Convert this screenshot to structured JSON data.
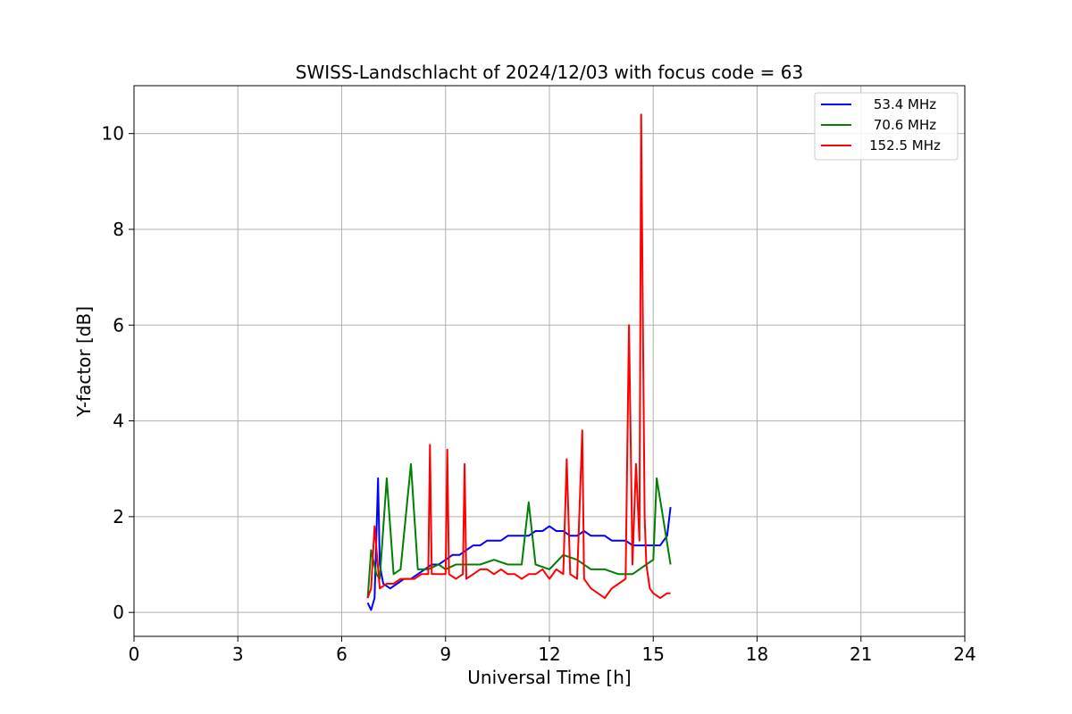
{
  "chart_data": {
    "type": "line",
    "title": "SWISS-Landschlacht of 2024/12/03 with focus code = 63",
    "xlabel": "Universal Time [h]",
    "ylabel": "Y-factor [dB]",
    "xlim": [
      0,
      24
    ],
    "ylim": [
      -0.5,
      11
    ],
    "xticks": [
      0,
      3,
      6,
      9,
      12,
      15,
      18,
      21,
      24
    ],
    "yticks": [
      0,
      2,
      4,
      6,
      8,
      10
    ],
    "grid": true,
    "legend_position": "top-right",
    "series": [
      {
        "name": "53.4 MHz",
        "color": "#0000ff",
        "x": [
          6.75,
          6.85,
          6.95,
          7.05,
          7.1,
          7.2,
          7.4,
          7.6,
          7.8,
          8.0,
          8.2,
          8.4,
          8.6,
          8.8,
          9.0,
          9.2,
          9.4,
          9.6,
          9.8,
          10.0,
          10.2,
          10.4,
          10.6,
          10.8,
          11.0,
          11.2,
          11.4,
          11.6,
          11.8,
          12.0,
          12.2,
          12.4,
          12.6,
          12.8,
          13.0,
          13.2,
          13.4,
          13.6,
          13.8,
          14.0,
          14.2,
          14.4,
          14.6,
          14.8,
          15.0,
          15.2,
          15.4,
          15.5
        ],
        "y": [
          0.2,
          0.05,
          0.3,
          2.8,
          1.0,
          0.6,
          0.5,
          0.6,
          0.7,
          0.7,
          0.8,
          0.9,
          1.0,
          1.0,
          1.1,
          1.2,
          1.2,
          1.3,
          1.4,
          1.4,
          1.5,
          1.5,
          1.5,
          1.6,
          1.6,
          1.6,
          1.6,
          1.7,
          1.7,
          1.8,
          1.7,
          1.7,
          1.6,
          1.6,
          1.7,
          1.6,
          1.6,
          1.6,
          1.5,
          1.5,
          1.5,
          1.4,
          1.4,
          1.4,
          1.4,
          1.4,
          1.6,
          2.2
        ]
      },
      {
        "name": "70.6 MHz",
        "color": "#008000",
        "x": [
          6.75,
          6.85,
          7.0,
          7.1,
          7.3,
          7.5,
          7.7,
          8.0,
          8.2,
          8.5,
          8.8,
          9.0,
          9.3,
          9.6,
          10.0,
          10.4,
          10.8,
          11.2,
          11.4,
          11.6,
          12.0,
          12.4,
          12.8,
          13.2,
          13.6,
          14.0,
          14.4,
          14.6,
          14.8,
          15.0,
          15.1,
          15.3,
          15.5
        ],
        "y": [
          0.3,
          1.3,
          0.8,
          0.7,
          2.8,
          0.8,
          0.9,
          3.1,
          0.9,
          0.9,
          1.0,
          0.9,
          1.0,
          1.0,
          1.0,
          1.1,
          1.0,
          1.0,
          2.3,
          1.0,
          0.9,
          1.2,
          1.1,
          0.9,
          0.9,
          0.8,
          0.8,
          0.9,
          1.0,
          1.1,
          2.8,
          1.9,
          1.0
        ]
      },
      {
        "name": "152.5 MHz",
        "color": "#ff0000",
        "x": [
          6.75,
          6.85,
          6.95,
          7.1,
          7.3,
          7.5,
          7.7,
          7.9,
          8.1,
          8.3,
          8.5,
          8.55,
          8.6,
          8.8,
          9.0,
          9.05,
          9.1,
          9.3,
          9.5,
          9.55,
          9.6,
          9.8,
          10.0,
          10.2,
          10.4,
          10.6,
          10.8,
          11.0,
          11.2,
          11.4,
          11.6,
          11.8,
          12.0,
          12.2,
          12.4,
          12.5,
          12.6,
          12.8,
          12.95,
          13.0,
          13.2,
          13.4,
          13.6,
          13.7,
          13.8,
          14.0,
          14.2,
          14.3,
          14.4,
          14.5,
          14.6,
          14.65,
          14.7,
          14.75,
          14.8,
          14.9,
          15.0,
          15.2,
          15.4,
          15.5
        ],
        "y": [
          0.3,
          0.5,
          1.8,
          0.5,
          0.6,
          0.6,
          0.7,
          0.7,
          0.7,
          0.8,
          0.8,
          3.5,
          0.8,
          0.8,
          0.8,
          3.4,
          0.8,
          0.7,
          0.8,
          3.1,
          0.7,
          0.8,
          0.9,
          0.9,
          0.8,
          0.9,
          0.8,
          0.8,
          0.7,
          0.8,
          0.8,
          0.9,
          0.7,
          0.9,
          0.8,
          3.2,
          0.8,
          0.7,
          3.8,
          0.7,
          0.5,
          0.4,
          0.3,
          0.4,
          0.5,
          0.6,
          0.7,
          6.0,
          1.0,
          3.1,
          1.5,
          10.4,
          6.2,
          2.0,
          1.0,
          0.5,
          0.4,
          0.3,
          0.4,
          0.4
        ]
      }
    ]
  }
}
